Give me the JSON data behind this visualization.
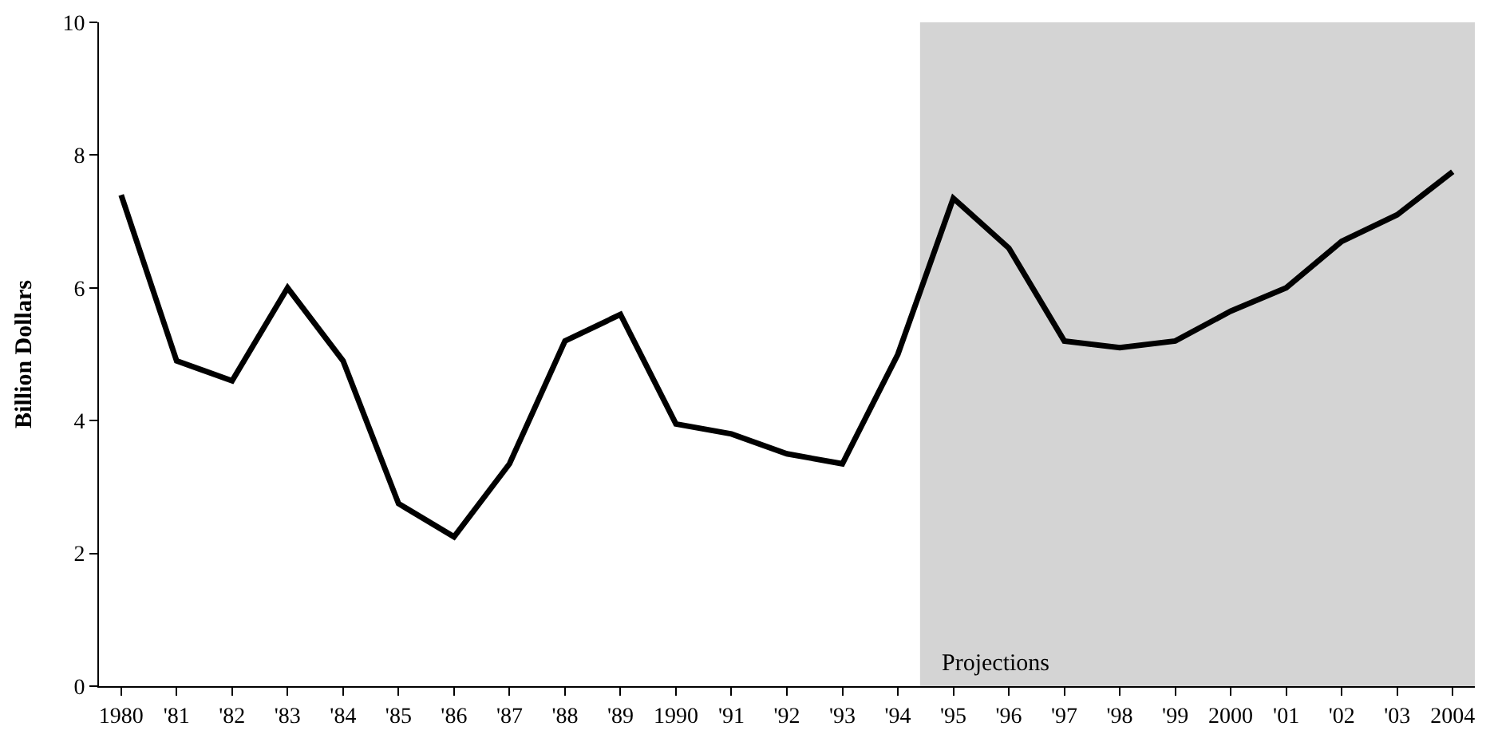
{
  "chart_data": {
    "type": "line",
    "ylabel": "Billion Dollars",
    "x": [
      1980,
      1981,
      1982,
      1983,
      1984,
      1985,
      1986,
      1987,
      1988,
      1989,
      1990,
      1991,
      1992,
      1993,
      1994,
      1995,
      1996,
      1997,
      1998,
      1999,
      2000,
      2001,
      2002,
      2003,
      2004
    ],
    "series": [
      {
        "color": "#000000",
        "values": [
          7.4,
          4.9,
          4.6,
          6.0,
          4.9,
          2.75,
          2.25,
          3.35,
          5.2,
          5.6,
          3.95,
          3.8,
          3.5,
          3.35,
          5.0,
          7.35,
          6.6,
          5.2,
          5.1,
          5.2,
          5.65,
          6.0,
          6.7,
          7.1,
          7.75
        ]
      }
    ],
    "xlim": [
      1979.6,
      2004.4
    ],
    "ylim": [
      0,
      10
    ],
    "xticks": [
      1980,
      {
        "value": 1981,
        "label": "'81"
      },
      {
        "value": 1982,
        "label": "'82"
      },
      {
        "value": 1983,
        "label": "'83"
      },
      {
        "value": 1984,
        "label": "'84"
      },
      {
        "value": 1985,
        "label": "'85"
      },
      {
        "value": 1986,
        "label": "'86"
      },
      {
        "value": 1987,
        "label": "'87"
      },
      {
        "value": 1988,
        "label": "'88"
      },
      {
        "value": 1989,
        "label": "'89"
      },
      1990,
      {
        "value": 1991,
        "label": "'91"
      },
      {
        "value": 1992,
        "label": "'92"
      },
      {
        "value": 1993,
        "label": "'93"
      },
      {
        "value": 1994,
        "label": "'94"
      },
      {
        "value": 1995,
        "label": "'95"
      },
      {
        "value": 1996,
        "label": "'96"
      },
      {
        "value": 1997,
        "label": "'97"
      },
      {
        "value": 1998,
        "label": "'98"
      },
      {
        "value": 1999,
        "label": "'99"
      },
      2000,
      {
        "value": 2001,
        "label": "'01"
      },
      {
        "value": 2002,
        "label": "'02"
      },
      {
        "value": 2003,
        "label": "'03"
      },
      2004
    ],
    "yticks": [
      0,
      2,
      4,
      6,
      8,
      10
    ],
    "bands": [
      {
        "axis": "x",
        "from": 1994.4,
        "to": 2004.4,
        "label": "Projections",
        "color": "#d4d4d4"
      }
    ],
    "grid": false,
    "marker": "none",
    "line_style": "solid"
  }
}
